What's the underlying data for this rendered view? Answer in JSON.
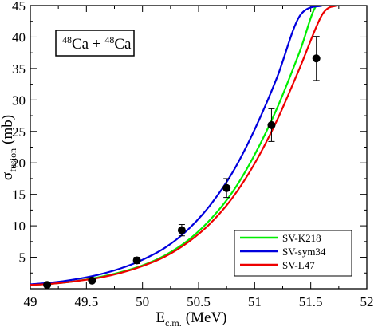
{
  "chart_data": {
    "type": "line",
    "title": "",
    "xlabel": "E",
    "xlabel_sub": "c.m.",
    "xlabel_unit": "(MeV)",
    "ylabel": "σ",
    "ylabel_sub": "fusion",
    "ylabel_unit": "(mb)",
    "xlim": [
      49,
      52
    ],
    "ylim": [
      0,
      45
    ],
    "xticks": [
      49,
      49.5,
      50,
      50.5,
      51,
      51.5,
      52
    ],
    "xtick_labels": [
      "49",
      "49.5",
      "50",
      "50.5",
      "51",
      "51.5",
      "52"
    ],
    "yticks": [
      5,
      10,
      15,
      20,
      25,
      30,
      35,
      40,
      45
    ],
    "ytick_labels": [
      "5",
      "10",
      "15",
      "20",
      "25",
      "30",
      "35",
      "40",
      "45"
    ],
    "grid": false,
    "legend_position": "bottom-right",
    "annotation": {
      "sup1": "48",
      "base1": "Ca + ",
      "sup2": "48",
      "base2": "Ca"
    },
    "series": [
      {
        "name": "SV-K218",
        "color": "#00ee00",
        "x": [
          49.0,
          49.2,
          49.4,
          49.6,
          49.8,
          50.0,
          50.2,
          50.4,
          50.6,
          50.8,
          51.0,
          51.2,
          51.4,
          51.55,
          51.7
        ],
        "y": [
          0.6,
          0.8,
          1.2,
          1.8,
          2.6,
          3.7,
          5.3,
          7.6,
          10.9,
          15.3,
          21.3,
          28.7,
          37.6,
          45.0,
          45.0
        ]
      },
      {
        "name": "SV-sym34",
        "color": "#0000dd",
        "x": [
          49.0,
          49.2,
          49.4,
          49.6,
          49.8,
          50.0,
          50.2,
          50.4,
          50.6,
          50.8,
          51.0,
          51.2,
          51.4,
          51.6
        ],
        "y": [
          0.7,
          1.0,
          1.5,
          2.2,
          3.2,
          4.6,
          6.5,
          9.3,
          13.2,
          18.4,
          25.3,
          33.6,
          43.3,
          45.0
        ]
      },
      {
        "name": "SV-L47",
        "color": "#ee0000",
        "x": [
          49.0,
          49.2,
          49.4,
          49.6,
          49.8,
          50.0,
          50.2,
          50.4,
          50.6,
          50.8,
          51.0,
          51.2,
          51.4,
          51.6,
          51.73
        ],
        "y": [
          0.6,
          0.8,
          1.2,
          1.7,
          2.5,
          3.6,
          5.1,
          7.3,
          10.3,
          14.4,
          19.9,
          26.8,
          35.0,
          43.5,
          45.0
        ]
      }
    ],
    "points": [
      {
        "x": 49.15,
        "y": 0.6,
        "err": 0.2
      },
      {
        "x": 49.55,
        "y": 1.3,
        "err": 0.3
      },
      {
        "x": 49.95,
        "y": 4.5,
        "err": 0.5
      },
      {
        "x": 50.35,
        "y": 9.3,
        "err": 0.9
      },
      {
        "x": 50.75,
        "y": 16.0,
        "err": 1.5
      },
      {
        "x": 51.15,
        "y": 26.0,
        "err": 2.6
      },
      {
        "x": 51.55,
        "y": 36.6,
        "err": 3.5
      }
    ]
  }
}
